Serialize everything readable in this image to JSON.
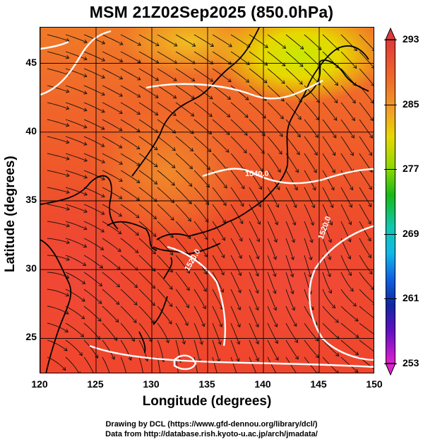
{
  "title": "MSM 21Z02Sep2025 (850.0hPa)",
  "axes": {
    "xlabel": "Longitude (degrees)",
    "ylabel": "Latitude  (degrees)",
    "x_ticks": [
      "120",
      "125",
      "130",
      "135",
      "140",
      "145",
      "150"
    ],
    "y_ticks": [
      "45",
      "40",
      "35",
      "30",
      "25"
    ]
  },
  "map": {
    "lon_range": [
      120,
      150
    ],
    "lat_range": [
      22.4,
      47.6
    ],
    "grid_lon": [
      120,
      125,
      130,
      135,
      140,
      145,
      150
    ],
    "grid_lat": [
      25,
      30,
      35,
      40,
      45
    ],
    "contour_labels": [
      "1520.0",
      "1520.0",
      "1540.0"
    ]
  },
  "colorbar": {
    "ticks": [
      "293",
      "285",
      "277",
      "269",
      "261",
      "253"
    ],
    "colors": [
      "#e03a3a",
      "#f0a02a",
      "#e8d800",
      "#18b818",
      "#10b8e8",
      "#1028a0",
      "#e020d0"
    ]
  },
  "credits": {
    "line1": "Drawing by DCL (https://www.gfd-dennou.org/library/dcl/)",
    "line2": "Data from http://database.rish.kyoto-u.ac.jp/arch/jmadata/"
  }
}
